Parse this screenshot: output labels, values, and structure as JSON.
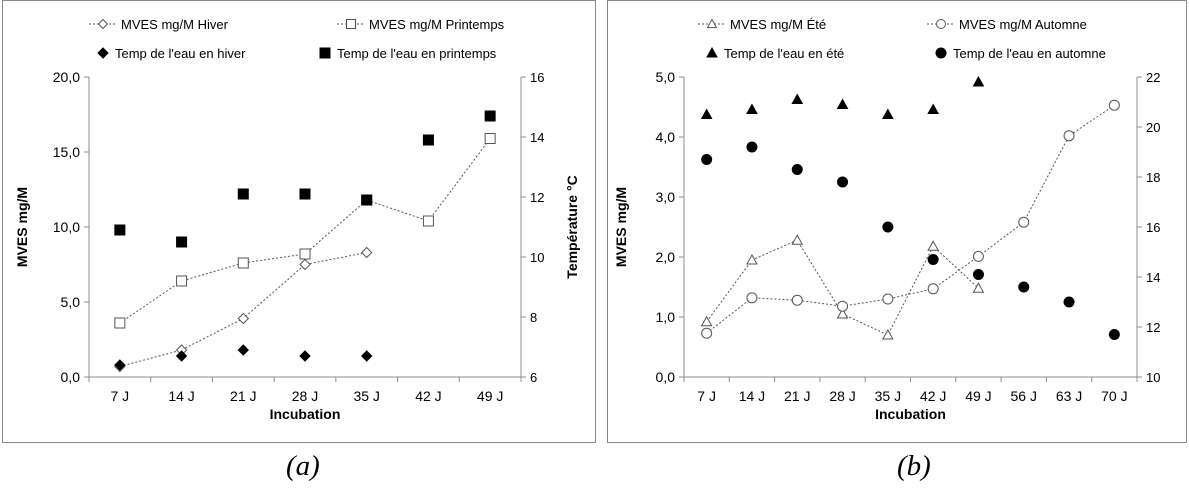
{
  "chart_data": [
    {
      "type": "scatter",
      "panel": "a",
      "caption": "(a)",
      "xlabel": "Incubation",
      "ylabel": "MVES mg/M",
      "y2label": "Température °C",
      "categories": [
        "7 J",
        "14 J",
        "21 J",
        "28 J",
        "35 J",
        "42 J",
        "49 J"
      ],
      "ylim": [
        0,
        20
      ],
      "yticks": [
        "0,0",
        "5,0",
        "10,0",
        "15,0",
        "20,0"
      ],
      "y2lim": [
        6,
        16
      ],
      "y2ticks": [
        "6",
        "8",
        "10",
        "12",
        "14",
        "16"
      ],
      "grid": false,
      "legend_position": "top",
      "series": [
        {
          "name": "MVES mg/M Hiver",
          "axis": "left",
          "marker": "diamond-open",
          "line": "dotted",
          "color": "#555555",
          "values": [
            0.7,
            1.8,
            3.9,
            7.5,
            8.3,
            null,
            null
          ]
        },
        {
          "name": "MVES mg/M Printemps",
          "axis": "left",
          "marker": "square-open",
          "line": "dotted",
          "color": "#555555",
          "values": [
            3.6,
            6.4,
            7.6,
            8.2,
            11.8,
            10.4,
            15.9
          ]
        },
        {
          "name": "Temp de l'eau en hiver",
          "axis": "right",
          "marker": "diamond-filled",
          "line": "none",
          "color": "#000000",
          "values": [
            6.4,
            6.7,
            6.9,
            6.7,
            6.7,
            null,
            null
          ]
        },
        {
          "name": "Temp de l'eau en printemps",
          "axis": "right",
          "marker": "square-filled",
          "line": "none",
          "color": "#000000",
          "values": [
            10.9,
            10.5,
            12.1,
            12.1,
            11.9,
            13.9,
            14.7
          ]
        }
      ]
    },
    {
      "type": "scatter",
      "panel": "b",
      "caption": "(b)",
      "xlabel": "Incubation",
      "ylabel": "MVES mg/M",
      "y2label": "Température °C",
      "categories": [
        "7 J",
        "14 J",
        "21 J",
        "28 J",
        "35 J",
        "42 J",
        "49 J",
        "56 J",
        "63 J",
        "70 J"
      ],
      "ylim": [
        0,
        5
      ],
      "yticks": [
        "0,0",
        "1,0",
        "2,0",
        "3,0",
        "4,0",
        "5,0"
      ],
      "y2lim": [
        10,
        22
      ],
      "y2ticks": [
        "10",
        "12",
        "14",
        "16",
        "18",
        "20",
        "22"
      ],
      "grid": false,
      "legend_position": "top",
      "series": [
        {
          "name": "MVES mg/M Été",
          "axis": "left",
          "marker": "triangle-open",
          "line": "dotted",
          "color": "#555555",
          "values": [
            0.92,
            1.95,
            2.28,
            1.05,
            0.7,
            2.18,
            1.48,
            null,
            null,
            null
          ]
        },
        {
          "name": "MVES mg/M Automne",
          "axis": "left",
          "marker": "circle-open",
          "line": "dotted",
          "color": "#555555",
          "values": [
            0.73,
            1.32,
            1.28,
            1.18,
            1.3,
            1.47,
            2.01,
            2.58,
            4.02,
            4.53
          ]
        },
        {
          "name": "Temp de l'eau en été",
          "axis": "right",
          "marker": "triangle-filled",
          "line": "none",
          "color": "#000000",
          "values": [
            20.5,
            20.7,
            21.1,
            20.9,
            20.5,
            20.7,
            21.8,
            null,
            null,
            null
          ]
        },
        {
          "name": "Temp de l'eau en automne",
          "axis": "right",
          "marker": "circle-filled",
          "line": "none",
          "color": "#000000",
          "values": [
            18.7,
            19.2,
            18.3,
            17.8,
            16.0,
            14.7,
            14.1,
            13.6,
            13.0,
            11.7
          ]
        }
      ]
    }
  ]
}
